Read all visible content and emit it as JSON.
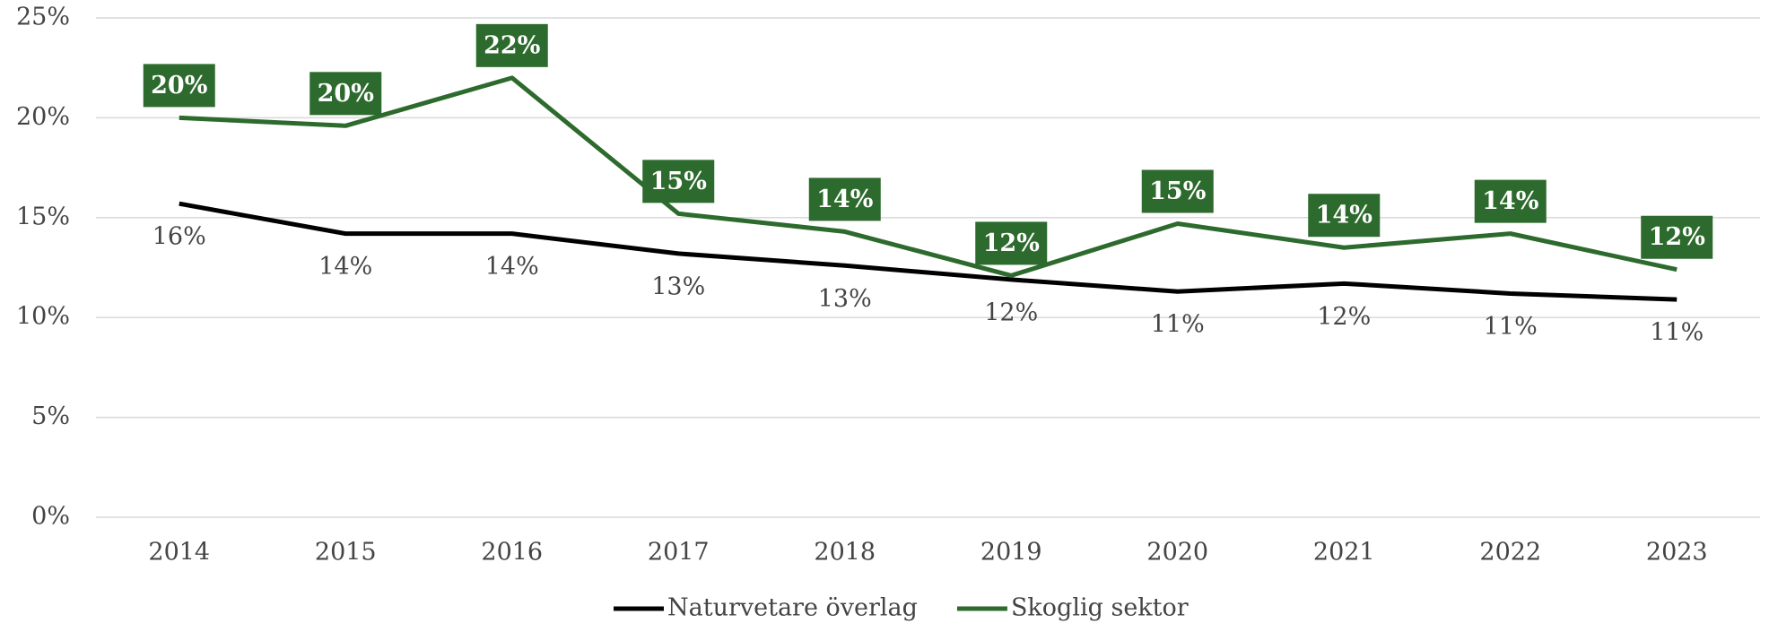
{
  "chart_data": {
    "type": "line",
    "categories": [
      "2014",
      "2015",
      "2016",
      "2017",
      "2018",
      "2019",
      "2020",
      "2021",
      "2022",
      "2023"
    ],
    "series": [
      {
        "name": "Naturvetare överlag",
        "color": "#000000",
        "values": [
          15.7,
          14.2,
          14.2,
          13.2,
          12.6,
          11.9,
          11.3,
          11.7,
          11.2,
          10.9
        ],
        "value_labels": [
          "16%",
          "14%",
          "14%",
          "13%",
          "13%",
          "12%",
          "11%",
          "12%",
          "11%",
          "11%"
        ]
      },
      {
        "name": "Skoglig sektor",
        "color": "#2d6a2d",
        "values": [
          20.0,
          19.6,
          22.0,
          15.2,
          14.3,
          12.1,
          14.7,
          13.5,
          14.2,
          12.4
        ],
        "value_labels": [
          "20%",
          "20%",
          "22%",
          "15%",
          "14%",
          "12%",
          "15%",
          "14%",
          "14%",
          "12%"
        ]
      }
    ],
    "ylim": [
      0,
      25
    ],
    "yticks": [
      {
        "value": 0,
        "label": "0%"
      },
      {
        "value": 5,
        "label": "5%"
      },
      {
        "value": 10,
        "label": "10%"
      },
      {
        "value": 15,
        "label": "15%"
      },
      {
        "value": 20,
        "label": "20%"
      },
      {
        "value": 25,
        "label": "25%"
      }
    ],
    "grid": true,
    "legend": "bottom"
  }
}
